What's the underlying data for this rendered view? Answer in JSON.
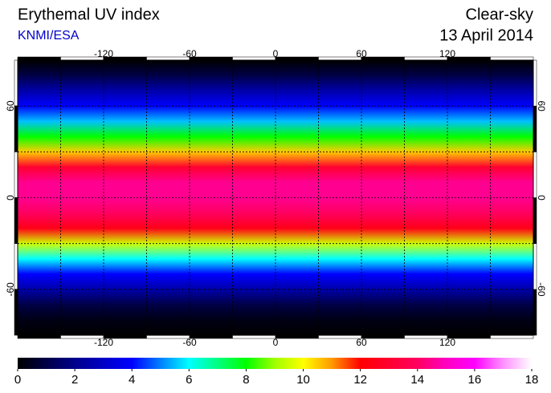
{
  "chart_data": {
    "type": "map",
    "title": "Erythemal UV index",
    "subtitle": "KNMI/ESA",
    "condition": "Clear-sky",
    "date": "13 April 2014",
    "xlim": [
      -180,
      180
    ],
    "ylim": [
      -90,
      90
    ],
    "xticks": [
      -120,
      -60,
      0,
      60,
      120
    ],
    "yticks": [
      -60,
      0,
      60
    ],
    "grid": true,
    "grid_step": 30,
    "field": {
      "lat": [
        90,
        80,
        70,
        60,
        50,
        40,
        30,
        20,
        10,
        0,
        -10,
        -20,
        -30,
        -40,
        -50,
        -60,
        -70,
        -80,
        -90
      ],
      "uv": [
        0,
        1,
        2.5,
        4,
        5.5,
        8,
        10.5,
        13,
        14.5,
        14.5,
        14,
        12.5,
        9.5,
        6,
        4,
        2.5,
        1,
        0.3,
        0
      ]
    },
    "colorbar": {
      "clim": [
        0,
        18
      ],
      "ticks": [
        0,
        2,
        4,
        6,
        8,
        10,
        12,
        14,
        16,
        18
      ],
      "colormap": [
        {
          "value": 0,
          "color": "#000000"
        },
        {
          "value": 2,
          "color": "#00008c"
        },
        {
          "value": 4,
          "color": "#0000ff"
        },
        {
          "value": 5,
          "color": "#0080ff"
        },
        {
          "value": 6,
          "color": "#00ffff"
        },
        {
          "value": 7,
          "color": "#00ff80"
        },
        {
          "value": 8,
          "color": "#00ff00"
        },
        {
          "value": 9,
          "color": "#a0ff00"
        },
        {
          "value": 10,
          "color": "#ffff00"
        },
        {
          "value": 11,
          "color": "#ff9900"
        },
        {
          "value": 12,
          "color": "#ff0000"
        },
        {
          "value": 14,
          "color": "#ff0060"
        },
        {
          "value": 15,
          "color": "#ff00c0"
        },
        {
          "value": 16,
          "color": "#ff00ff"
        },
        {
          "value": 17,
          "color": "#ff90ff"
        },
        {
          "value": 18,
          "color": "#ffffff"
        }
      ]
    }
  }
}
